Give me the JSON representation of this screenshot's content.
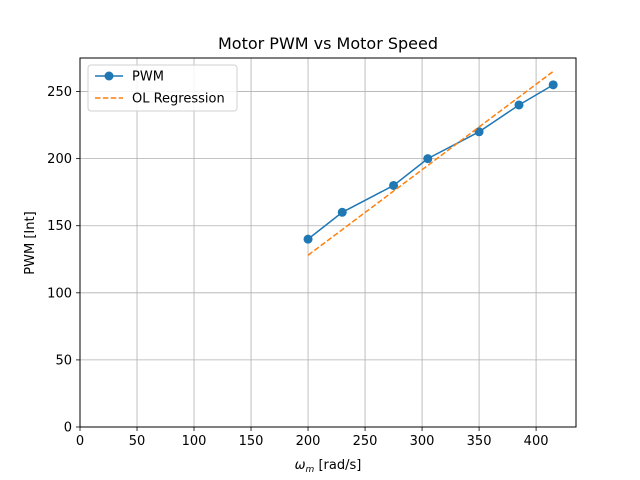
{
  "chart_data": {
    "type": "line",
    "title": "Motor PWM vs Motor Speed",
    "xlabel_symbol": "ω",
    "xlabel_subscript": "m",
    "xlabel_unit": " [rad/s]",
    "ylabel": "PWM [Int]",
    "xlim": [
      0,
      435
    ],
    "ylim": [
      0,
      275
    ],
    "xticks": [
      0,
      50,
      100,
      150,
      200,
      250,
      300,
      350,
      400
    ],
    "yticks": [
      0,
      50,
      100,
      150,
      200,
      250
    ],
    "grid": true,
    "legend_position": "top-left",
    "series": [
      {
        "name": "PWM",
        "style": "solid-with-markers",
        "color": "#1f77b4",
        "x": [
          200,
          230,
          275,
          305,
          350,
          385,
          415
        ],
        "y": [
          140,
          160,
          180,
          200,
          220,
          240,
          255
        ]
      },
      {
        "name": "OL Regression",
        "style": "dashed",
        "color": "#ff7f0e",
        "x": [
          200,
          415
        ],
        "y": [
          128,
          265
        ]
      }
    ]
  }
}
